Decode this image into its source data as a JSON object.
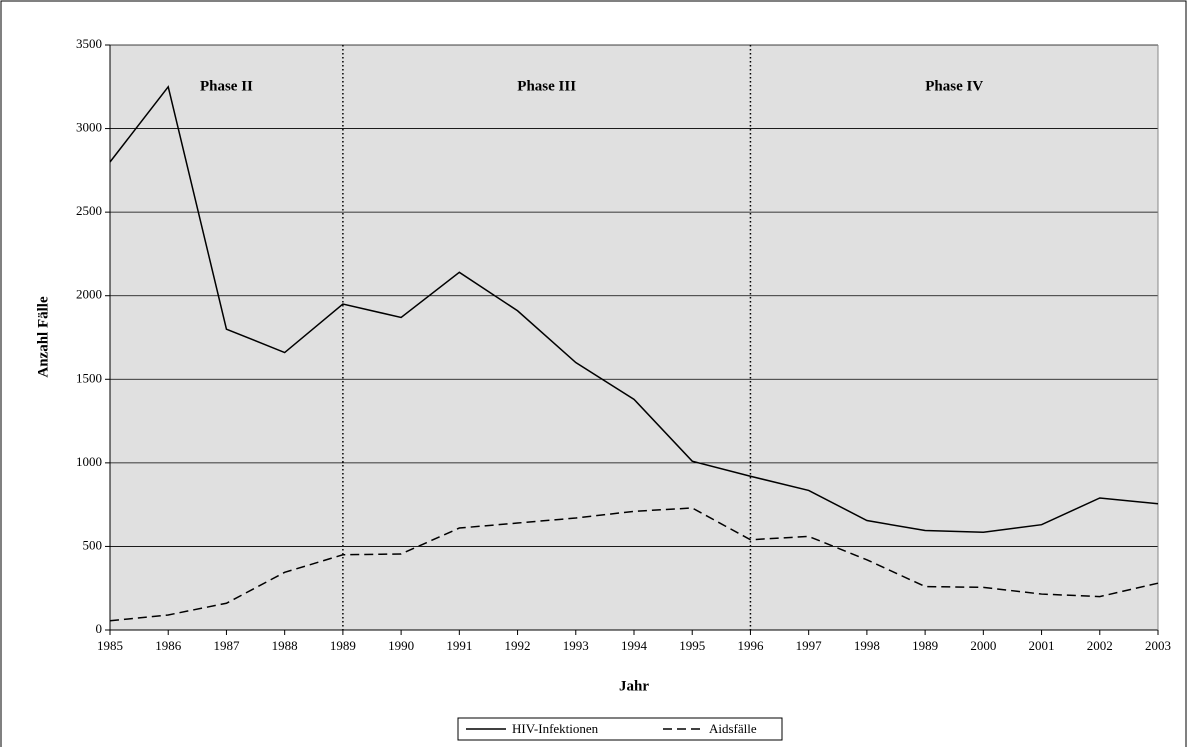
{
  "chart_data": {
    "type": "line",
    "x_label": "Jahr",
    "y_label": "Anzahl Fälle",
    "categories": [
      "1985",
      "1986",
      "1987",
      "1988",
      "1989",
      "1990",
      "1991",
      "1992",
      "1993",
      "1994",
      "1995",
      "1996",
      "1997",
      "1998",
      "1989",
      "2000",
      "2001",
      "2002",
      "2003"
    ],
    "series": [
      {
        "name": "HIV-Infektionen",
        "color": "#000000",
        "line_style": "solid",
        "values": [
          2800,
          3250,
          1800,
          1660,
          1950,
          1870,
          2140,
          1910,
          1600,
          1380,
          1010,
          920,
          835,
          655,
          595,
          585,
          630,
          790,
          755
        ]
      },
      {
        "name": "Aidsfälle",
        "color": "#000000",
        "line_style": "dashed",
        "values": [
          55,
          90,
          160,
          345,
          450,
          455,
          610,
          640,
          670,
          710,
          730,
          540,
          560,
          420,
          260,
          255,
          215,
          200,
          280
        ]
      }
    ],
    "ylim": [
      0,
      3500
    ],
    "yticks": [
      0,
      500,
      1000,
      1500,
      2000,
      2500,
      3000,
      3500
    ],
    "grid": true,
    "phase_boundaries": [
      "1989",
      "1996"
    ],
    "phase_labels": [
      "Phase II",
      "Phase III",
      "Phase IV"
    ],
    "legend": "bottom"
  }
}
